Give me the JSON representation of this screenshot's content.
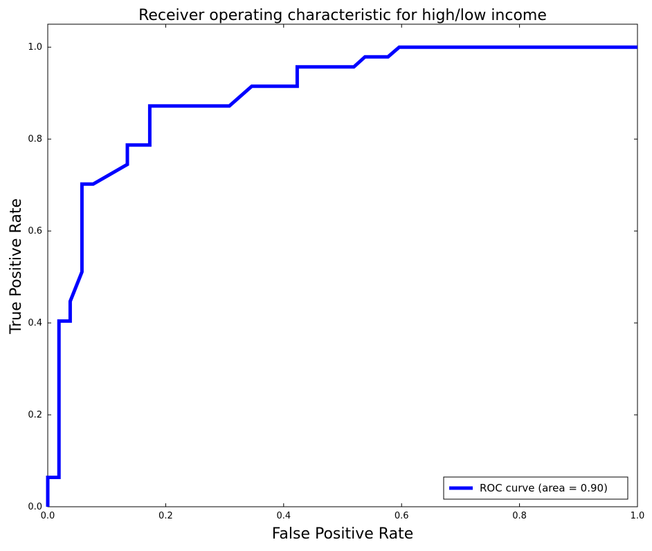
{
  "chart_data": {
    "type": "line",
    "title": "Receiver operating characteristic for high/low income",
    "xlabel": "False Positive Rate",
    "ylabel": "True Positive Rate",
    "xlim": [
      0.0,
      1.0
    ],
    "ylim": [
      0.0,
      1.05
    ],
    "xticks": [
      0.0,
      0.2,
      0.4,
      0.6,
      0.8,
      1.0
    ],
    "yticks": [
      0.0,
      0.2,
      0.4,
      0.6,
      0.8,
      1.0
    ],
    "xtick_labels": [
      "0.0",
      "0.2",
      "0.4",
      "0.6",
      "0.8",
      "1.0"
    ],
    "ytick_labels": [
      "0.0",
      "0.2",
      "0.4",
      "0.6",
      "0.8",
      "1.0"
    ],
    "grid": false,
    "legend_position": "lower-right",
    "series": [
      {
        "name": "ROC curve (area = 0.90)",
        "color": "#0000ff",
        "x": [
          0.0,
          0.0,
          0.019,
          0.019,
          0.038,
          0.038,
          0.058,
          0.058,
          0.077,
          0.135,
          0.135,
          0.173,
          0.173,
          0.308,
          0.346,
          0.423,
          0.423,
          0.519,
          0.538,
          0.577,
          0.596,
          1.0
        ],
        "y": [
          0.0,
          0.064,
          0.064,
          0.404,
          0.404,
          0.447,
          0.511,
          0.702,
          0.702,
          0.745,
          0.787,
          0.787,
          0.872,
          0.872,
          0.915,
          0.915,
          0.957,
          0.957,
          0.979,
          0.979,
          1.0,
          1.0
        ]
      }
    ]
  }
}
